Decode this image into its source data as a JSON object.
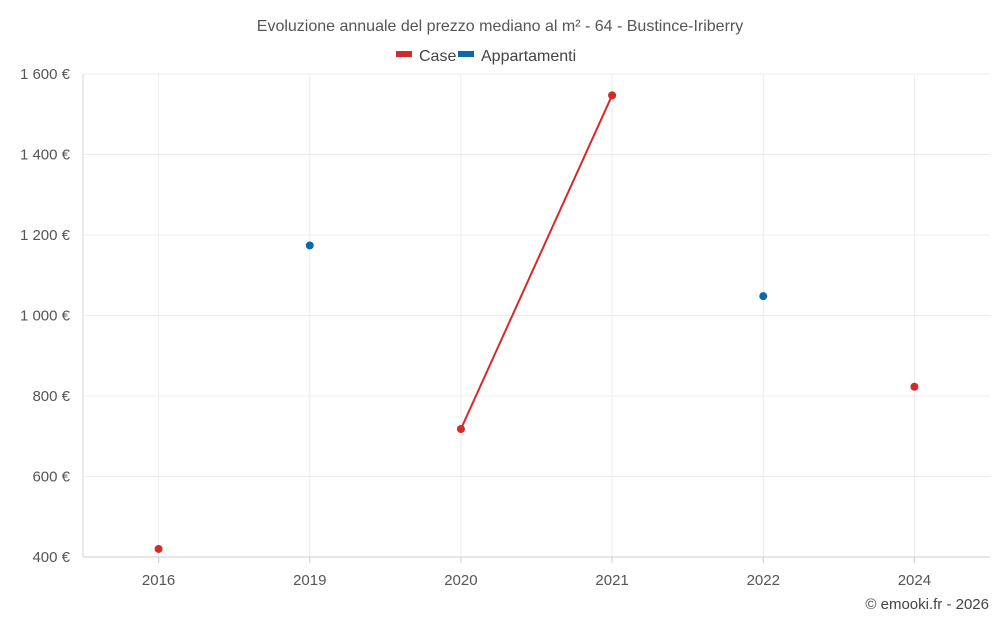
{
  "chart_data": {
    "type": "line",
    "title": "Evoluzione annuale del prezzo mediano al m² - 64 - Bustince-Iriberry",
    "categories": [
      "2016",
      "2019",
      "2020",
      "2021",
      "2022",
      "2024"
    ],
    "series": [
      {
        "name": "Case",
        "color": "#d42a2a",
        "values": [
          420,
          null,
          718,
          1547,
          null,
          823
        ]
      },
      {
        "name": "Appartamenti",
        "color": "#0b69a8",
        "values": [
          null,
          1174,
          null,
          null,
          1048,
          null
        ]
      }
    ],
    "yticks": [
      400,
      600,
      800,
      1000,
      1200,
      1400,
      1600
    ],
    "ytick_labels": [
      "400 €",
      "600 €",
      "800 €",
      "1 000 €",
      "1 200 €",
      "1 400 €",
      "1 600 €"
    ],
    "ylim": [
      400,
      1600
    ],
    "xlabel": "",
    "ylabel": "",
    "grid": true,
    "legend_position": "top-center"
  },
  "credit": "© emooki.fr - 2026"
}
